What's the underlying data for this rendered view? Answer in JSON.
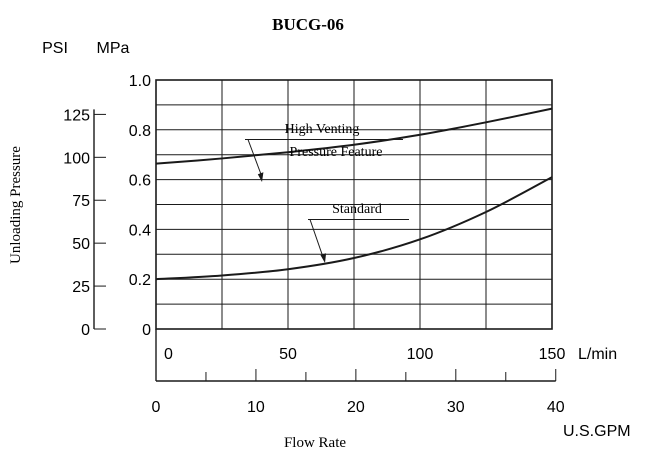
{
  "chart_data": {
    "type": "line",
    "title": "BUCG-06",
    "ylabel": "Unloading Pressure",
    "xlabel": "Flow Rate",
    "y_units_primary": "MPa",
    "y_units_secondary": "PSI",
    "x_units_primary": "L/min",
    "x_units_secondary": "U.S.GPM",
    "xlim": [
      0,
      150
    ],
    "ylim": [
      0,
      1.0
    ],
    "grid": true,
    "mpa_ticks": [
      0,
      0.2,
      0.4,
      0.6,
      0.8,
      1.0
    ],
    "mpa_tick_labels": [
      "0",
      "0.2",
      "0.4",
      "0.6",
      "0.8",
      "1.0"
    ],
    "psi_ticks": [
      0,
      25,
      50,
      75,
      100,
      125
    ],
    "psi_tick_labels": [
      "0",
      "25",
      "50",
      "75",
      "100",
      "125"
    ],
    "lmin_ticks": [
      0,
      50,
      100,
      150
    ],
    "lmin_tick_labels": [
      "0",
      "50",
      "100",
      "150"
    ],
    "gpm_ticks": [
      0,
      10,
      20,
      30,
      40
    ],
    "gpm_tick_labels": [
      "0",
      "10",
      "20",
      "30",
      "40"
    ],
    "series": [
      {
        "name": "High Venting Pressure Feature",
        "label_lines": [
          "High Venting",
          "Pressure Feature"
        ],
        "x": [
          0,
          25,
          50,
          75,
          100,
          125,
          150
        ],
        "y": [
          0.664,
          0.685,
          0.71,
          0.74,
          0.78,
          0.83,
          0.885
        ]
      },
      {
        "name": "Standard",
        "label_lines": [
          "Standard"
        ],
        "x": [
          0,
          25,
          50,
          75,
          100,
          125,
          150
        ],
        "y": [
          0.2,
          0.215,
          0.24,
          0.285,
          0.36,
          0.47,
          0.61
        ]
      }
    ]
  }
}
